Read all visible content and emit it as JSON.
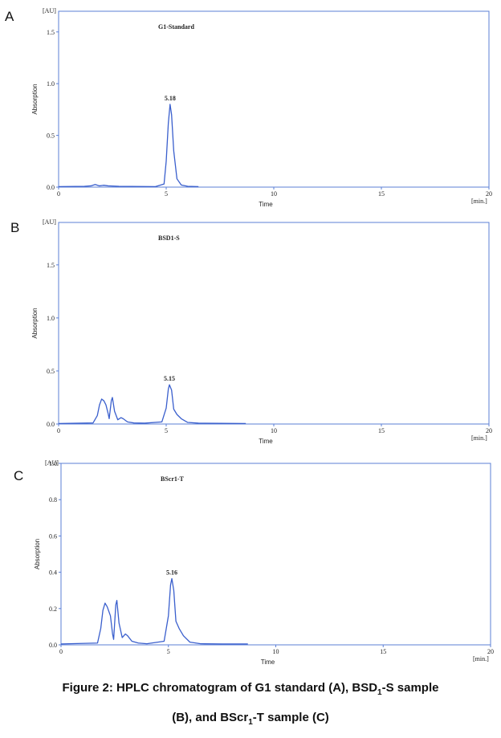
{
  "caption": {
    "line1_pre": "Figure 2: HPLC chromatogram of G1 standard (A), BSD",
    "line1_sub": "1",
    "line1_post": "-S sample",
    "line2_pre": "(B), and BScr",
    "line2_sub": "1",
    "line2_post": "-T sample (C)"
  },
  "chart_data": [
    {
      "panel": "A",
      "type": "line",
      "title": "G1-Standard",
      "xlabel": "Time",
      "ylabel": "Absorption",
      "x_unit": "[min.]",
      "y_unit": "[AU]",
      "xlim": [
        0,
        20
      ],
      "ylim": [
        0,
        1.7
      ],
      "xticks": [
        0,
        5,
        10,
        15,
        20
      ],
      "yticks": [
        0.0,
        0.5,
        1.0,
        1.5
      ],
      "ytick_labels": [
        "0.0",
        "0.5",
        "1.0",
        "1.5"
      ],
      "peak_annotations": [
        {
          "x": 5.18,
          "y": 0.8,
          "label": "5.18"
        }
      ],
      "series": [
        {
          "color": "#3a5fcd",
          "x": [
            0,
            1.2,
            1.5,
            1.7,
            1.9,
            2.1,
            2.3,
            2.8,
            4.5,
            4.9,
            5.0,
            5.1,
            5.18,
            5.25,
            5.35,
            5.5,
            5.7,
            6.0,
            6.5
          ],
          "y": [
            0.005,
            0.008,
            0.012,
            0.025,
            0.012,
            0.018,
            0.012,
            0.008,
            0.005,
            0.03,
            0.25,
            0.62,
            0.8,
            0.7,
            0.35,
            0.08,
            0.02,
            0.008,
            0.005
          ]
        }
      ]
    },
    {
      "panel": "B",
      "type": "line",
      "title": "BSD1-S",
      "xlabel": "Time",
      "ylabel": "Absorption",
      "x_unit": "[min.]",
      "y_unit": "[AU]",
      "xlim": [
        0,
        20
      ],
      "ylim": [
        0,
        1.9
      ],
      "xticks": [
        0,
        5,
        10,
        15,
        20
      ],
      "yticks": [
        0.0,
        0.5,
        1.0,
        1.5
      ],
      "ytick_labels": [
        "0.0",
        "0.5",
        "1.0",
        "1.5"
      ],
      "peak_annotations": [
        {
          "x": 5.15,
          "y": 0.37,
          "label": "5.15"
        }
      ],
      "series": [
        {
          "color": "#3a5fcd",
          "x": [
            0,
            1.6,
            1.8,
            1.9,
            2.0,
            2.1,
            2.2,
            2.3,
            2.35,
            2.45,
            2.5,
            2.6,
            2.75,
            2.9,
            3.0,
            3.2,
            3.5,
            4.0,
            4.8,
            5.0,
            5.1,
            5.15,
            5.25,
            5.35,
            5.5,
            5.7,
            6.0,
            6.5,
            7.5,
            8.7
          ],
          "y": [
            0.005,
            0.01,
            0.08,
            0.18,
            0.235,
            0.22,
            0.18,
            0.1,
            0.05,
            0.22,
            0.25,
            0.12,
            0.04,
            0.06,
            0.05,
            0.02,
            0.01,
            0.008,
            0.02,
            0.15,
            0.33,
            0.37,
            0.32,
            0.14,
            0.09,
            0.05,
            0.015,
            0.008,
            0.006,
            0.005
          ]
        }
      ]
    },
    {
      "panel": "C",
      "type": "line",
      "title": "BScr1-T",
      "xlabel": "Time",
      "ylabel": "Absorption",
      "x_unit": "[min.]",
      "y_unit": "[AU]",
      "xlim": [
        0,
        20
      ],
      "ylim": [
        0,
        1.0
      ],
      "xticks": [
        0,
        5,
        10,
        15,
        20
      ],
      "yticks": [
        0.0,
        0.2,
        0.4,
        0.6,
        0.8,
        1.0
      ],
      "ytick_labels": [
        "0.0",
        "0.2",
        "0.4",
        "0.6",
        "0.8",
        "1.0"
      ],
      "peak_annotations": [
        {
          "x": 5.16,
          "y": 0.365,
          "label": "5.16"
        }
      ],
      "series": [
        {
          "color": "#3a5fcd",
          "x": [
            0,
            1.7,
            1.85,
            1.95,
            2.05,
            2.15,
            2.3,
            2.4,
            2.45,
            2.55,
            2.6,
            2.7,
            2.85,
            3.0,
            3.1,
            3.3,
            3.6,
            4.0,
            4.8,
            5.0,
            5.1,
            5.16,
            5.25,
            5.35,
            5.5,
            5.7,
            6.0,
            6.5,
            7.5,
            8.7
          ],
          "y": [
            0.005,
            0.01,
            0.09,
            0.19,
            0.23,
            0.21,
            0.16,
            0.06,
            0.03,
            0.22,
            0.245,
            0.12,
            0.04,
            0.06,
            0.05,
            0.02,
            0.01,
            0.006,
            0.02,
            0.16,
            0.33,
            0.365,
            0.3,
            0.13,
            0.09,
            0.05,
            0.015,
            0.006,
            0.005,
            0.005
          ]
        }
      ]
    }
  ]
}
